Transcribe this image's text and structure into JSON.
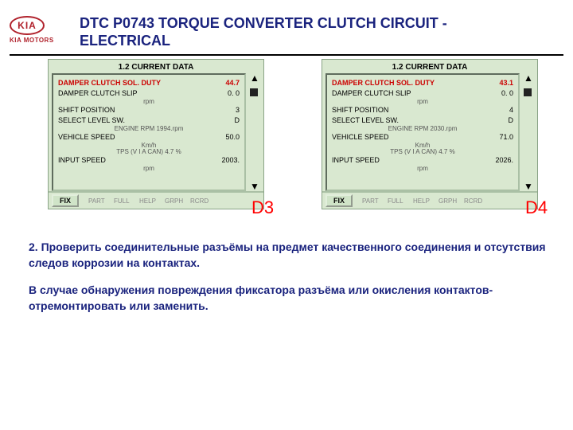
{
  "logo": {
    "brand": "KIA",
    "sub": "KIA MOTORS"
  },
  "title": "DTC P0743 TORQUE CONVERTER CLUTCH CIRCUIT  - ELECTRICAL",
  "panels": [
    {
      "tag": "D3",
      "heading": "1.2 CURRENT DATA",
      "rows": [
        {
          "label": "DAMPER CLUTCH SOL. DUTY",
          "value": "44.7",
          "unit": "",
          "highlight": true
        },
        {
          "label": "DAMPER CLUTCH SLIP",
          "value": "0. 0",
          "unit": "rpm"
        },
        {
          "label": "SHIFT POSITION",
          "value": "3",
          "unit": ""
        },
        {
          "label": "SELECT LEVEL SW.",
          "value": "D",
          "unit": ""
        },
        {
          "label": "ENGINE RPM",
          "value": "1994.",
          "unit": "rpm",
          "center": true
        },
        {
          "label": "VEHICLE SPEED",
          "value": "50.0",
          "unit": "Km/h"
        },
        {
          "label": "TPS (V I A  CAN)",
          "value": "4.7 %",
          "unit": "",
          "center": true
        },
        {
          "label": "INPUT SPEED",
          "value": "2003.",
          "unit": "rpm"
        }
      ]
    },
    {
      "tag": "D4",
      "heading": "1.2 CURRENT DATA",
      "rows": [
        {
          "label": "DAMPER CLUTCH SOL. DUTY",
          "value": "43.1",
          "unit": "",
          "highlight": true
        },
        {
          "label": "DAMPER CLUTCH SLIP",
          "value": "0. 0",
          "unit": "rpm"
        },
        {
          "label": "SHIFT POSITION",
          "value": "4",
          "unit": ""
        },
        {
          "label": "SELECT LEVEL SW.",
          "value": "D",
          "unit": ""
        },
        {
          "label": "ENGINE RPM",
          "value": "2030.",
          "unit": "rpm",
          "center": true
        },
        {
          "label": "VEHICLE SPEED",
          "value": "71.0",
          "unit": "Km/h"
        },
        {
          "label": "TPS (V I A  CAN)",
          "value": "4.7 %",
          "unit": "",
          "center": true
        },
        {
          "label": "INPUT SPEED",
          "value": "2026.",
          "unit": "rpm"
        }
      ]
    }
  ],
  "footer_fix": "FIX",
  "footer_labels": [
    "PART",
    "FULL",
    "HELP",
    "GRPH",
    "RCRD"
  ],
  "instructions": {
    "p1": "2. Проверить соединительные разъёмы на предмет качественного соединения и отсутствия следов коррозии на контактах.",
    "p2": "В случае обнаружения повреждения фиксатора разъёма или окисления контактов- отремонтировать или заменить."
  },
  "colors": {
    "accent": "#1a237e",
    "brand": "#b0212b",
    "panel_bg": "#d9e8d0",
    "highlight": "#cc0000"
  }
}
